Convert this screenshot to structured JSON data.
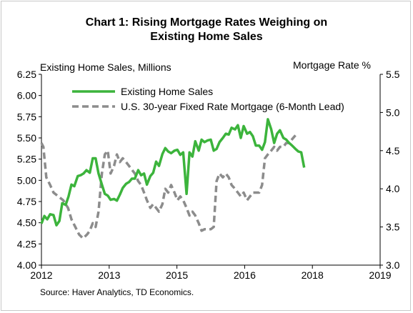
{
  "chart_data": {
    "type": "line",
    "title": [
      "Chart 1: Rising Mortgage Rates Weighing on",
      "Existing Home Sales"
    ],
    "ylabel_left": "Existing Home Sales, Millions",
    "ylabel_right": "Mortgage Rate %",
    "source": "Source: Haver Analytics, TD Economics.",
    "x_ticks": [
      "2012",
      "2013",
      "2015",
      "2016",
      "2018",
      "2019"
    ],
    "xlim": [
      2012.0,
      2019.0
    ],
    "y_left_ticks": [
      "4.00",
      "4.25",
      "4.50",
      "4.75",
      "5.00",
      "5.25",
      "5.50",
      "5.75",
      "6.00",
      "6.25"
    ],
    "ylim_left": [
      4.0,
      6.25
    ],
    "y_right_ticks": [
      "3.0",
      "3.5",
      "4.0",
      "4.5",
      "5.0",
      "5.5"
    ],
    "ylim_right": [
      3.0,
      5.5
    ],
    "grid": false,
    "legend_position": "top",
    "series": [
      {
        "name": "Existing Home Sales",
        "axis": "left",
        "color": "#3cb43c",
        "style": "solid",
        "points": [
          [
            2012.0,
            4.49
          ],
          [
            2012.06,
            4.58
          ],
          [
            2012.12,
            4.54
          ],
          [
            2012.18,
            4.6
          ],
          [
            2012.25,
            4.59
          ],
          [
            2012.31,
            4.47
          ],
          [
            2012.37,
            4.52
          ],
          [
            2012.43,
            4.73
          ],
          [
            2012.5,
            4.71
          ],
          [
            2012.56,
            4.81
          ],
          [
            2012.62,
            4.95
          ],
          [
            2012.68,
            4.93
          ],
          [
            2012.75,
            5.05
          ],
          [
            2012.81,
            5.06
          ],
          [
            2012.87,
            5.08
          ],
          [
            2012.93,
            5.12
          ],
          [
            2013.0,
            5.09
          ],
          [
            2013.06,
            5.26
          ],
          [
            2013.12,
            5.26
          ],
          [
            2013.18,
            5.08
          ],
          [
            2013.25,
            4.95
          ],
          [
            2013.31,
            4.84
          ],
          [
            2013.37,
            4.82
          ],
          [
            2013.43,
            4.77
          ],
          [
            2013.5,
            4.78
          ],
          [
            2013.56,
            4.76
          ],
          [
            2013.62,
            4.83
          ],
          [
            2013.68,
            4.91
          ],
          [
            2013.75,
            4.96
          ],
          [
            2013.81,
            4.98
          ],
          [
            2013.87,
            5.02
          ],
          [
            2013.93,
            5.02
          ],
          [
            2014.0,
            5.12
          ],
          [
            2014.06,
            5.06
          ],
          [
            2014.12,
            5.08
          ],
          [
            2014.18,
            4.95
          ],
          [
            2014.25,
            5.05
          ],
          [
            2014.31,
            5.09
          ],
          [
            2014.37,
            5.22
          ],
          [
            2014.43,
            5.17
          ],
          [
            2014.5,
            5.31
          ],
          [
            2014.56,
            5.38
          ],
          [
            2014.62,
            5.34
          ],
          [
            2014.68,
            5.32
          ],
          [
            2014.75,
            5.35
          ],
          [
            2014.81,
            5.36
          ],
          [
            2014.87,
            5.3
          ],
          [
            2014.93,
            5.33
          ],
          [
            2015.0,
            4.84
          ],
          [
            2015.06,
            5.33
          ],
          [
            2015.12,
            5.28
          ],
          [
            2015.18,
            5.46
          ],
          [
            2015.25,
            5.35
          ],
          [
            2015.31,
            5.48
          ],
          [
            2015.37,
            5.45
          ],
          [
            2015.43,
            5.47
          ],
          [
            2015.5,
            5.48
          ],
          [
            2015.56,
            5.35
          ],
          [
            2015.62,
            5.37
          ],
          [
            2015.68,
            5.45
          ],
          [
            2015.75,
            5.5
          ],
          [
            2015.81,
            5.55
          ],
          [
            2015.87,
            5.54
          ],
          [
            2015.93,
            5.62
          ],
          [
            2016.0,
            5.6
          ],
          [
            2016.06,
            5.65
          ],
          [
            2016.12,
            5.5
          ],
          [
            2016.18,
            5.64
          ],
          [
            2016.25,
            5.55
          ],
          [
            2016.31,
            5.57
          ],
          [
            2016.37,
            5.52
          ],
          [
            2016.43,
            5.41
          ],
          [
            2016.5,
            5.41
          ],
          [
            2016.56,
            5.36
          ],
          [
            2016.62,
            5.45
          ],
          [
            2016.68,
            5.72
          ],
          [
            2016.75,
            5.6
          ],
          [
            2016.81,
            5.44
          ],
          [
            2016.87,
            5.55
          ],
          [
            2016.93,
            5.59
          ],
          [
            2017.0,
            5.5
          ],
          [
            2017.06,
            5.48
          ],
          [
            2017.12,
            5.44
          ],
          [
            2017.18,
            5.41
          ],
          [
            2017.25,
            5.37
          ],
          [
            2017.31,
            5.34
          ],
          [
            2017.37,
            5.33
          ],
          [
            2017.43,
            5.15
          ]
        ]
      },
      {
        "name": "U.S. 30-year Fixed Rate Mortgage (6-Month Lead)",
        "axis": "right",
        "color": "#8c8c8c",
        "style": "dashed",
        "points": [
          [
            2012.0,
            4.6
          ],
          [
            2012.04,
            4.55
          ],
          [
            2012.1,
            4.15
          ],
          [
            2012.18,
            4.05
          ],
          [
            2012.25,
            3.95
          ],
          [
            2012.35,
            3.9
          ],
          [
            2012.45,
            3.85
          ],
          [
            2012.55,
            3.75
          ],
          [
            2012.62,
            3.6
          ],
          [
            2012.7,
            3.5
          ],
          [
            2012.78,
            3.4
          ],
          [
            2012.86,
            3.35
          ],
          [
            2012.94,
            3.4
          ],
          [
            2013.0,
            3.45
          ],
          [
            2013.06,
            3.55
          ],
          [
            2013.12,
            3.5
          ],
          [
            2013.18,
            3.7
          ],
          [
            2013.25,
            4.2
          ],
          [
            2013.31,
            4.45
          ],
          [
            2013.37,
            4.5
          ],
          [
            2013.43,
            4.2
          ],
          [
            2013.5,
            4.3
          ],
          [
            2013.56,
            4.45
          ],
          [
            2013.62,
            4.35
          ],
          [
            2013.68,
            4.4
          ],
          [
            2013.75,
            4.35
          ],
          [
            2013.81,
            4.3
          ],
          [
            2013.87,
            4.25
          ],
          [
            2013.93,
            4.2
          ],
          [
            2014.0,
            4.1
          ],
          [
            2014.06,
            4.05
          ],
          [
            2014.12,
            3.95
          ],
          [
            2014.18,
            3.85
          ],
          [
            2014.25,
            3.75
          ],
          [
            2014.31,
            3.8
          ],
          [
            2014.37,
            3.75
          ],
          [
            2014.43,
            3.7
          ],
          [
            2014.5,
            3.8
          ],
          [
            2014.56,
            4.0
          ],
          [
            2014.62,
            3.95
          ],
          [
            2014.68,
            4.05
          ],
          [
            2014.75,
            3.95
          ],
          [
            2014.81,
            3.85
          ],
          [
            2014.87,
            3.9
          ],
          [
            2014.93,
            3.85
          ],
          [
            2015.0,
            3.75
          ],
          [
            2015.06,
            3.65
          ],
          [
            2015.12,
            3.7
          ],
          [
            2015.18,
            3.65
          ],
          [
            2015.25,
            3.55
          ],
          [
            2015.31,
            3.45
          ],
          [
            2015.37,
            3.47
          ],
          [
            2015.43,
            3.47
          ],
          [
            2015.5,
            3.47
          ],
          [
            2015.56,
            3.5
          ],
          [
            2015.62,
            4.1
          ],
          [
            2015.68,
            4.2
          ],
          [
            2015.75,
            4.15
          ],
          [
            2015.81,
            4.2
          ],
          [
            2015.87,
            4.15
          ],
          [
            2015.93,
            4.05
          ],
          [
            2016.0,
            4.0
          ],
          [
            2016.06,
            3.95
          ],
          [
            2016.12,
            3.9
          ],
          [
            2016.18,
            3.95
          ],
          [
            2016.25,
            3.85
          ],
          [
            2016.31,
            3.9
          ],
          [
            2016.37,
            3.95
          ],
          [
            2016.43,
            3.95
          ],
          [
            2016.5,
            3.95
          ],
          [
            2016.56,
            4.05
          ],
          [
            2016.62,
            4.4
          ],
          [
            2016.68,
            4.45
          ],
          [
            2016.75,
            4.5
          ],
          [
            2016.81,
            4.55
          ],
          [
            2016.87,
            4.5
          ],
          [
            2016.93,
            4.55
          ],
          [
            2017.0,
            4.55
          ],
          [
            2017.06,
            4.6
          ],
          [
            2017.12,
            4.6
          ],
          [
            2017.18,
            4.65
          ],
          [
            2017.25,
            4.7
          ]
        ]
      }
    ]
  }
}
